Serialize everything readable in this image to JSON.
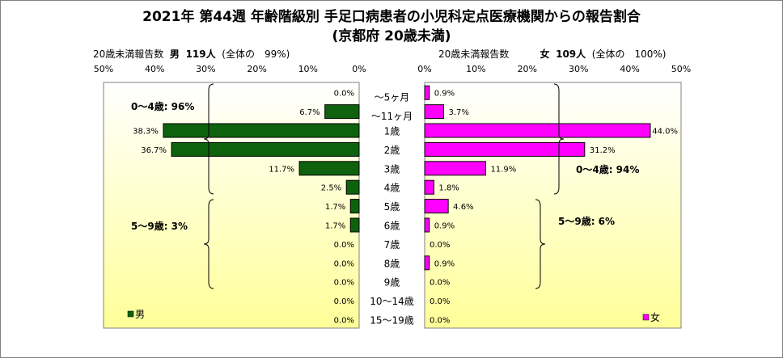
{
  "title_line1": "2021年 第44週 年齢階級別 手足口病患者の小児科定点医療機関からの報告割合",
  "title_line2": "(京都府 20歳未満)",
  "left_stats": {
    "label": "20歳未満報告数",
    "sex": "男",
    "count": "119人",
    "share": "(全体の　99%)"
  },
  "right_stats": {
    "label": "20歳未満報告数",
    "sex": "女",
    "count": "109人",
    "share": "(全体の　100%)"
  },
  "colors": {
    "male": "#0e620e",
    "female": "#ff00ff",
    "bg_light": "#ffffff",
    "bg_yellow": "#ffff99"
  },
  "chart_data": {
    "type": "bar",
    "orientation": "horizontal-butterfly",
    "categories": [
      "～5ヶ月",
      "～11ヶ月",
      "1歳",
      "2歳",
      "3歳",
      "4歳",
      "5歳",
      "6歳",
      "7歳",
      "8歳",
      "9歳",
      "10～14歳",
      "15～19歳"
    ],
    "series": [
      {
        "name": "男",
        "values": [
          0.0,
          6.7,
          38.3,
          36.7,
          11.7,
          2.5,
          1.7,
          1.7,
          0.0,
          0.0,
          0.0,
          0.0,
          0.0
        ],
        "labels": [
          "0.0%",
          "6.7%",
          "38.3%",
          "36.7%",
          "11.7%",
          "2.5%",
          "1.7%",
          "1.7%",
          "0.0%",
          "0.0%",
          "0.0%",
          "0.0%",
          "0.0%"
        ]
      },
      {
        "name": "女",
        "values": [
          0.9,
          3.7,
          44.0,
          31.2,
          11.9,
          1.8,
          4.6,
          0.9,
          0.0,
          0.9,
          0.0,
          0.0,
          0.0
        ],
        "labels": [
          "0.9%",
          "3.7%",
          "44.0%",
          "31.2%",
          "11.9%",
          "1.8%",
          "4.6%",
          "0.9%",
          "0.0%",
          "0.9%",
          "0.0%",
          "0.0%",
          "0.0%"
        ]
      }
    ],
    "axis_ticks": [
      "50%",
      "40%",
      "30%",
      "20%",
      "10%",
      "0%"
    ],
    "axis_ticks_right": [
      "0%",
      "10%",
      "20%",
      "30%",
      "40%",
      "50%"
    ],
    "xlim": [
      0,
      50
    ],
    "annotations": {
      "left_0_4": "0～4歳: 96%",
      "left_5_9": "5～9歳: 3%",
      "right_0_4": "0～4歳: 94%",
      "right_5_9": "5～9歳: 6%"
    },
    "legend_left": "男",
    "legend_right": "女"
  }
}
